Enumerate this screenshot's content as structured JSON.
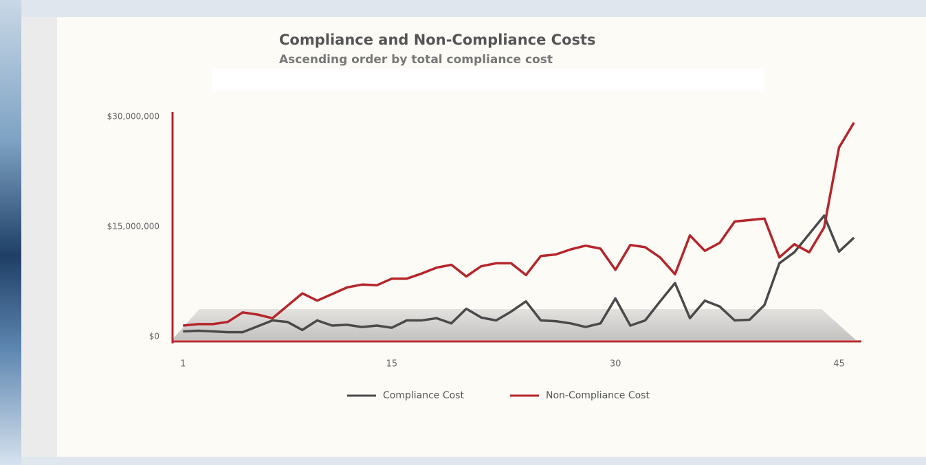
{
  "chart_data": {
    "type": "line",
    "title": "Compliance and Non-Compliance Costs",
    "subtitle": "Ascending order by total compliance cost",
    "x": [
      1,
      2,
      3,
      4,
      5,
      6,
      7,
      8,
      9,
      10,
      11,
      12,
      13,
      14,
      15,
      16,
      17,
      18,
      19,
      20,
      21,
      22,
      23,
      24,
      25,
      26,
      27,
      28,
      29,
      30,
      31,
      32,
      33,
      34,
      35,
      36,
      37,
      38,
      39,
      40,
      41,
      42,
      43,
      44,
      45,
      46
    ],
    "xlim": [
      0.25,
      46.5
    ],
    "xticks": [
      1,
      15,
      30,
      45
    ],
    "ylim": [
      0,
      30000000
    ],
    "yticks": [
      {
        "value": 0,
        "label": "$0"
      },
      {
        "value": 15000000,
        "label": "$15,000,000"
      },
      {
        "value": 30000000,
        "label": "$30,000,000"
      }
    ],
    "series": [
      {
        "name": "Compliance Cost",
        "color": "#4a4a4a",
        "values": [
          700000,
          800000,
          700000,
          600000,
          600000,
          1400000,
          2200000,
          2000000,
          900000,
          2200000,
          1500000,
          1600000,
          1300000,
          1500000,
          1200000,
          2200000,
          2200000,
          2500000,
          1800000,
          3800000,
          2600000,
          2200000,
          3400000,
          4800000,
          2200000,
          2100000,
          1800000,
          1300000,
          1800000,
          5200000,
          1500000,
          2200000,
          4800000,
          7300000,
          2500000,
          4900000,
          4100000,
          2200000,
          2300000,
          4300000,
          10000000,
          11500000,
          14000000,
          16500000,
          11600000,
          13500000
        ]
      },
      {
        "name": "Non-Compliance Cost",
        "color": "#b5252b",
        "values": [
          1500000,
          1700000,
          1700000,
          2000000,
          3300000,
          3000000,
          2500000,
          4200000,
          5900000,
          4900000,
          5800000,
          6700000,
          7100000,
          7000000,
          7900000,
          7900000,
          8600000,
          9400000,
          9800000,
          8200000,
          9600000,
          10000000,
          10000000,
          8400000,
          11000000,
          11200000,
          11900000,
          12400000,
          12000000,
          9100000,
          12500000,
          12200000,
          10800000,
          8500000,
          13800000,
          11700000,
          12800000,
          15700000,
          15900000,
          16100000,
          10800000,
          12600000,
          11500000,
          14900000,
          25800000,
          29200000
        ]
      }
    ]
  }
}
